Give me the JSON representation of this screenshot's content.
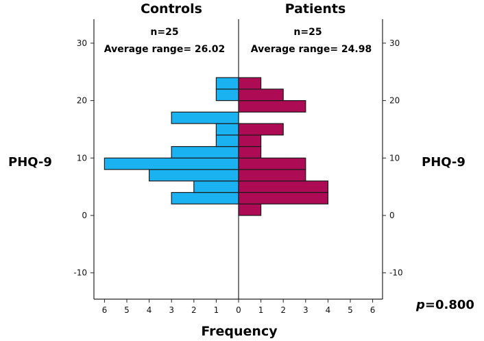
{
  "chart_data": {
    "type": "bar",
    "orientation": "population-pyramid",
    "xlabel": "Frequency",
    "ylabel": "PHQ-9",
    "ylim": [
      -15,
      33
    ],
    "yticks": [
      -10,
      0,
      10,
      20,
      30
    ],
    "xticks_left": [
      6,
      5,
      4,
      3,
      2,
      1,
      0
    ],
    "xticks_right": [
      1,
      2,
      3,
      4,
      5,
      6
    ],
    "xlim": [
      0,
      6
    ],
    "bin_width": 2,
    "grid": false,
    "p_value": {
      "prefix": "p",
      "value": "=0.800"
    },
    "series": [
      {
        "name": "Controls",
        "side": "left",
        "color": "#1ab2f0",
        "n_text": "n=25",
        "average_text": "Average range= 26.02",
        "bins": [
          {
            "center": 3,
            "value": 3
          },
          {
            "center": 5,
            "value": 2
          },
          {
            "center": 7,
            "value": 4
          },
          {
            "center": 9,
            "value": 6
          },
          {
            "center": 11,
            "value": 3
          },
          {
            "center": 13,
            "value": 1
          },
          {
            "center": 15,
            "value": 1
          },
          {
            "center": 17,
            "value": 3
          },
          {
            "center": 21,
            "value": 1
          },
          {
            "center": 23,
            "value": 1
          }
        ]
      },
      {
        "name": "Patients",
        "side": "right",
        "color": "#ad0c55",
        "n_text": "n=25",
        "average_text": "Average range= 24.98",
        "bins": [
          {
            "center": 1,
            "value": 1
          },
          {
            "center": 3,
            "value": 4
          },
          {
            "center": 5,
            "value": 4
          },
          {
            "center": 7,
            "value": 3
          },
          {
            "center": 9,
            "value": 3
          },
          {
            "center": 11,
            "value": 1
          },
          {
            "center": 13,
            "value": 1
          },
          {
            "center": 15,
            "value": 2
          },
          {
            "center": 19,
            "value": 3
          },
          {
            "center": 21,
            "value": 2
          },
          {
            "center": 23,
            "value": 1
          }
        ]
      }
    ]
  }
}
